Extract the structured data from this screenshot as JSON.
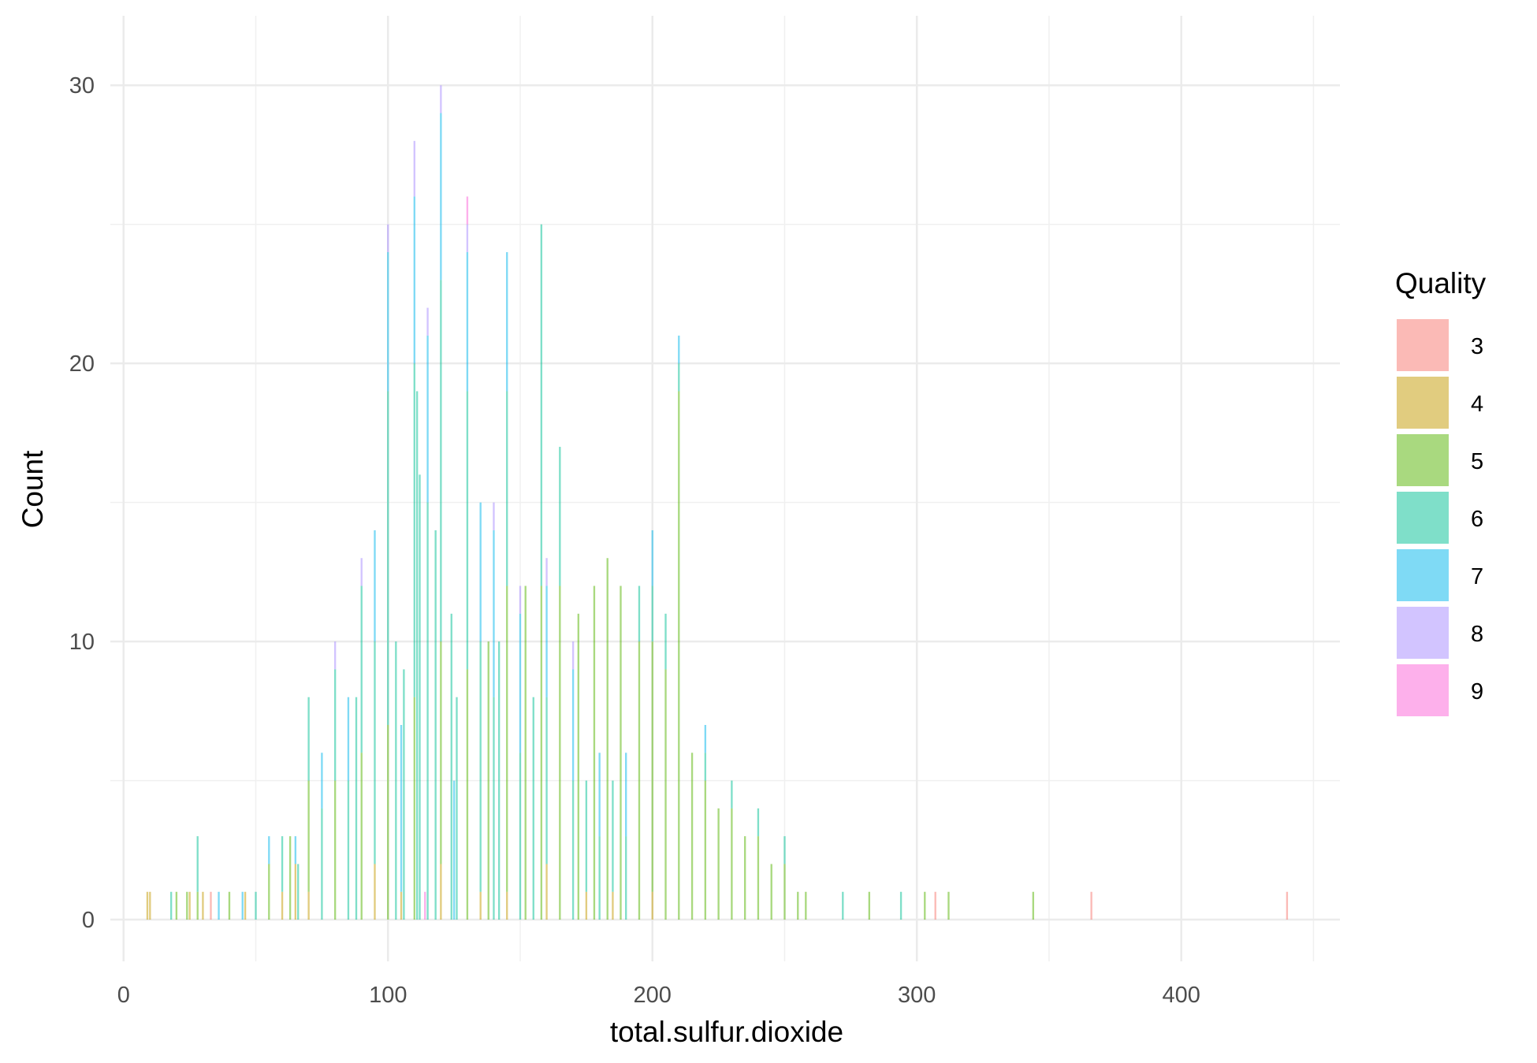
{
  "chart_data": {
    "type": "bar",
    "subtype": "stacked-histogram",
    "title": "",
    "xlabel": "total.sulfur.dioxide",
    "ylabel": "Count",
    "xlim": [
      -5,
      460
    ],
    "ylim": [
      -1.5,
      32.5
    ],
    "x_ticks": [
      0,
      100,
      200,
      300,
      400
    ],
    "y_ticks": [
      0,
      10,
      20,
      30
    ],
    "grid": true,
    "bar_opacity": 0.5,
    "legend": {
      "title": "Quality",
      "position": "right"
    },
    "series": [
      {
        "name": "3",
        "color": "#F8766D",
        "x": [
          33,
          307,
          366,
          440
        ],
        "values": [
          1,
          1,
          1,
          1
        ]
      },
      {
        "name": "4",
        "color": "#C49A00",
        "x": [
          9,
          10,
          25,
          30,
          46,
          60,
          65,
          70,
          95,
          105,
          120,
          135,
          145,
          160,
          175,
          185,
          200
        ],
        "values": [
          1,
          1,
          1,
          1,
          1,
          1,
          2,
          1,
          2,
          1,
          2,
          1,
          1,
          2,
          1,
          1,
          1
        ]
      },
      {
        "name": "5",
        "color": "#53B400",
        "x": [
          20,
          24,
          28,
          40,
          55,
          63,
          70,
          80,
          90,
          100,
          110,
          120,
          130,
          138,
          145,
          152,
          158,
          165,
          172,
          178,
          183,
          188,
          195,
          200,
          205,
          210,
          215,
          220,
          225,
          230,
          235,
          240,
          245,
          250,
          255,
          258,
          282,
          303,
          312,
          344
        ],
        "values": [
          1,
          1,
          1,
          1,
          2,
          3,
          4,
          5,
          6,
          7,
          8,
          8,
          9,
          10,
          11,
          12,
          12,
          12,
          11,
          12,
          13,
          12,
          10,
          9,
          9,
          19,
          6,
          5,
          4,
          4,
          3,
          3,
          2,
          2,
          1,
          1,
          1,
          1,
          1,
          1
        ]
      },
      {
        "name": "6",
        "color": "#00C094",
        "x": [
          18,
          28,
          50,
          60,
          66,
          70,
          75,
          80,
          85,
          88,
          90,
          95,
          100,
          103,
          106,
          110,
          111,
          112,
          115,
          118,
          120,
          124,
          126,
          130,
          135,
          140,
          142,
          145,
          150,
          155,
          158,
          160,
          165,
          170,
          175,
          180,
          185,
          190,
          195,
          200,
          205,
          210,
          220,
          230,
          240,
          250,
          272,
          294
        ],
        "values": [
          1,
          2,
          1,
          2,
          2,
          3,
          4,
          4,
          5,
          8,
          6,
          8,
          12,
          10,
          9,
          12,
          19,
          16,
          15,
          14,
          13,
          11,
          8,
          10,
          9,
          8,
          10,
          7,
          6,
          8,
          13,
          6,
          5,
          5,
          4,
          3,
          4,
          3,
          2,
          2,
          2,
          1,
          1,
          1,
          1,
          1,
          1,
          1
        ]
      },
      {
        "name": "7",
        "color": "#00B6EB",
        "x": [
          36,
          45,
          55,
          65,
          75,
          85,
          95,
          100,
          105,
          110,
          115,
          120,
          125,
          130,
          135,
          140,
          145,
          150,
          160,
          170,
          180,
          190,
          200,
          210,
          220
        ],
        "values": [
          1,
          1,
          1,
          1,
          2,
          3,
          4,
          5,
          6,
          6,
          6,
          6,
          5,
          5,
          5,
          6,
          5,
          5,
          4,
          4,
          3,
          3,
          2,
          1,
          1
        ]
      },
      {
        "name": "8",
        "color": "#A58AFF",
        "x": [
          80,
          90,
          100,
          110,
          115,
          120,
          130,
          140,
          150,
          160,
          170
        ],
        "values": [
          1,
          1,
          1,
          2,
          1,
          1,
          1,
          1,
          1,
          1,
          1
        ]
      },
      {
        "name": "9",
        "color": "#FB61D7",
        "x": [
          114,
          130
        ],
        "values": [
          1,
          1
        ]
      }
    ]
  }
}
